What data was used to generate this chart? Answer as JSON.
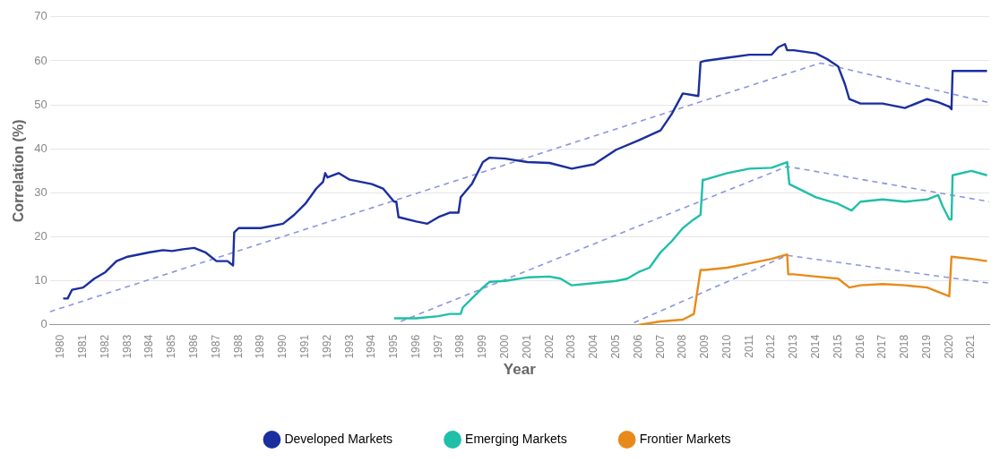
{
  "chart_data": {
    "type": "line",
    "xlabel": "Year",
    "ylabel": "Correlation (%)",
    "xlim": [
      1979.5,
      2021.8
    ],
    "xticks": [
      1980,
      1981,
      1982,
      1983,
      1984,
      1985,
      1986,
      1987,
      1988,
      1989,
      1990,
      1991,
      1992,
      1993,
      1994,
      1995,
      1996,
      1997,
      1998,
      1999,
      2000,
      2001,
      2002,
      2003,
      2004,
      2005,
      2006,
      2007,
      2008,
      2009,
      2010,
      2011,
      2012,
      2013,
      2014,
      2015,
      2016,
      2017,
      2018,
      2019,
      2020,
      2021
    ],
    "ylim": [
      0,
      70
    ],
    "yticks": [
      0,
      10,
      20,
      30,
      40,
      50,
      60,
      70
    ],
    "grid": "y",
    "legend": "bottom",
    "marker": "none",
    "series": [
      {
        "name": "Developed Markets",
        "color": "#1a2e9e",
        "x": [
          1980.1,
          1980.3,
          1980.5,
          1981,
          1981.5,
          1982,
          1982.5,
          1983,
          1983.5,
          1984,
          1984.6,
          1985,
          1985.5,
          1986,
          1986.5,
          1987,
          1987.5,
          1987.75,
          1987.8,
          1988,
          1989,
          1990,
          1990.5,
          1991,
          1991.5,
          1991.8,
          1991.9,
          1992,
          1992.5,
          1993,
          1993.5,
          1994,
          1994.5,
          1995,
          1995.1,
          1995.2,
          1996,
          1996.5,
          1997,
          1997.5,
          1997.9,
          1998,
          1998.5,
          1999,
          1999.3,
          2000,
          2001,
          2002,
          2003,
          2004,
          2005,
          2006,
          2007,
          2007.5,
          2008,
          2008.7,
          2008.8,
          2009,
          2010,
          2011,
          2012,
          2012.3,
          2012.6,
          2012.7,
          2013,
          2014,
          2014.5,
          2015,
          2015.3,
          2015.5,
          2016,
          2017,
          2018,
          2019,
          2019.5,
          2020,
          2020.1,
          2020.15,
          2021,
          2021.7
        ],
        "values": [
          6,
          6,
          8,
          8.5,
          10.5,
          12,
          14.5,
          15.5,
          16,
          16.5,
          17,
          16.8,
          17.2,
          17.5,
          16.5,
          14.5,
          14.5,
          13.5,
          21,
          22,
          22,
          23,
          25,
          27.5,
          31,
          32.5,
          34.5,
          33.5,
          34.5,
          33,
          32.5,
          32,
          31,
          28,
          28,
          24.5,
          23.5,
          23,
          24.5,
          25.5,
          25.5,
          29,
          32,
          37,
          38,
          37.8,
          37,
          36.8,
          35.5,
          36.5,
          39.8,
          41.9,
          44.2,
          47.9,
          52.6,
          52,
          59.7,
          60,
          60.7,
          61.4,
          61.4,
          63.1,
          63.8,
          62.4,
          62.4,
          61.7,
          60.4,
          58.7,
          54.7,
          51.3,
          50.3,
          50.3,
          49.3,
          51.3,
          50.6,
          49.6,
          49,
          57.7,
          57.7,
          57.7
        ]
      },
      {
        "name": "Emerging Markets",
        "color": "#1fbfa8",
        "x": [
          1995,
          1996,
          1997,
          1997.5,
          1998,
          1998.1,
          1998.5,
          1999,
          1999.3,
          2000,
          2001,
          2002,
          2002.5,
          2003,
          2004,
          2005,
          2005.5,
          2006,
          2006.5,
          2007,
          2007.5,
          2008,
          2008.5,
          2008.8,
          2008.9,
          2009,
          2010,
          2011,
          2012,
          2012.7,
          2012.8,
          2013,
          2014,
          2015,
          2015.6,
          2016,
          2017,
          2018,
          2019,
          2019.5,
          2019.7,
          2020,
          2020.1,
          2020.15,
          2021,
          2021.7
        ],
        "values": [
          1.5,
          1.5,
          2,
          2.5,
          2.5,
          4,
          6,
          8.5,
          9.8,
          10,
          10.8,
          11,
          10.5,
          9,
          9.5,
          10,
          10.5,
          12,
          13,
          16.5,
          19,
          22,
          24,
          25,
          33,
          33,
          34.5,
          35.5,
          35.7,
          37,
          32,
          31.5,
          29,
          27.5,
          26,
          28,
          28.5,
          28,
          28.5,
          29.5,
          27,
          24,
          24,
          34,
          35,
          34
        ]
      },
      {
        "name": "Frontier Markets",
        "color": "#e88a1a",
        "x": [
          2006,
          2007,
          2008,
          2008.5,
          2008.8,
          2009,
          2010,
          2011,
          2012,
          2012.7,
          2012.75,
          2013,
          2014,
          2015,
          2015.5,
          2016,
          2017,
          2018,
          2019,
          2020,
          2020.1,
          2021,
          2021.7
        ],
        "values": [
          0,
          0.8,
          1.2,
          2.5,
          12.5,
          12.5,
          13,
          14,
          15,
          16,
          11.5,
          11.5,
          11,
          10.5,
          8.5,
          9,
          9.3,
          9,
          8.5,
          6.5,
          15.5,
          15,
          14.5
        ]
      },
      {
        "color": "#8a96dc",
        "line_style": "dashed",
        "x": [
          1979.5,
          2014.2,
          2021.8
        ],
        "values": [
          3,
          59.5,
          50.5
        ]
      },
      {
        "color": "#8a96dc",
        "line_style": "dashed",
        "x": [
          1995.3,
          2012.7,
          2021.8
        ],
        "values": [
          0.8,
          36,
          28
        ]
      },
      {
        "color": "#8a96dc",
        "line_style": "dashed",
        "x": [
          2005.8,
          2012.7,
          2021.8
        ],
        "values": [
          0.5,
          15.8,
          9.5
        ]
      }
    ]
  }
}
